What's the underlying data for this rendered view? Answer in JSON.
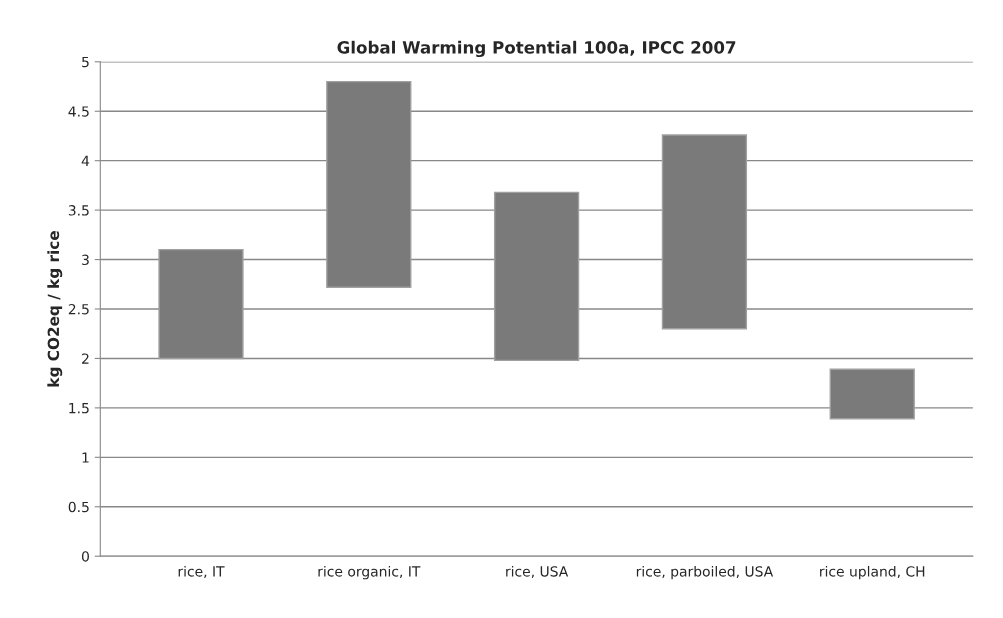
{
  "chart_data": {
    "type": "bar",
    "title": "Global Warming Potential 100a, IPCC 2007",
    "ylabel": "kg CO2eq / kg rice",
    "categories": [
      "rice, IT",
      "rice organic, IT",
      "rice, USA",
      "rice, parboiled, USA",
      "rice upland, CH"
    ],
    "base": [
      2.0,
      2.72,
      1.98,
      2.3,
      1.39
    ],
    "values": [
      1.1,
      2.08,
      1.7,
      1.96,
      0.5
    ],
    "color": "#7a7a7a",
    "ylim": [
      0,
      5
    ],
    "yticks": [
      0,
      0.5,
      1,
      1.5,
      2,
      2.5,
      3,
      3.5,
      4,
      4.5,
      5
    ],
    "grid": "y",
    "legend": false
  }
}
